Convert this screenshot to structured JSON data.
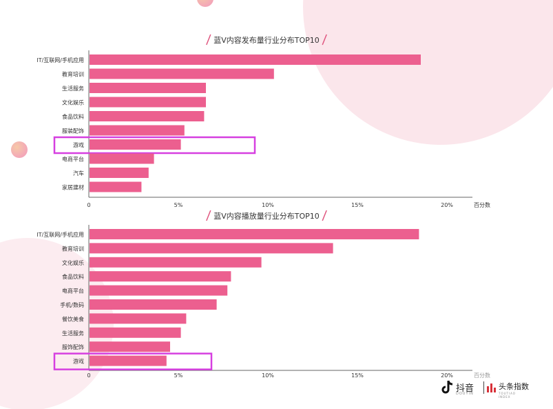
{
  "colors": {
    "bar": "#ec5f8f",
    "highlight": "#d63fe0",
    "axis": "#666666",
    "text": "#333333",
    "title_slash": "#e0567f",
    "bg_blob": "#fbe4ea"
  },
  "chart_data": [
    {
      "type": "bar",
      "orientation": "horizontal",
      "title": "蓝V内容发布量行业分布TOP10",
      "categories": [
        "IT/互联网/手机应用",
        "教育培训",
        "生活服务",
        "文化娱乐",
        "食品饮料",
        "服装配饰",
        "游戏",
        "电商平台",
        "汽车",
        "家居建材"
      ],
      "values": [
        18.5,
        10.3,
        6.5,
        6.5,
        6.4,
        5.3,
        5.1,
        3.6,
        3.3,
        2.9
      ],
      "highlight": "游戏",
      "xlabel": "百分数",
      "xlim": [
        0,
        21.5
      ],
      "xticks": [
        0,
        5,
        10,
        15,
        20
      ],
      "xtick_labels": [
        "0",
        "5%",
        "10%",
        "15%",
        "20%"
      ]
    },
    {
      "type": "bar",
      "orientation": "horizontal",
      "title": "蓝V内容播放量行业分布TOP10",
      "categories": [
        "IT/互联网/手机应用",
        "教育培训",
        "文化娱乐",
        "食品饮料",
        "电商平台",
        "手机/数码",
        "餐饮美食",
        "生活服务",
        "服饰配饰",
        "游戏"
      ],
      "values": [
        18.4,
        13.6,
        9.6,
        7.9,
        7.7,
        7.1,
        5.4,
        5.1,
        4.5,
        4.3
      ],
      "highlight": "游戏",
      "xlabel": "百分数",
      "xlim": [
        0,
        21.5
      ],
      "xticks": [
        0,
        5,
        10,
        15,
        20
      ],
      "xtick_labels": [
        "0",
        "5%",
        "10%",
        "15%",
        "20%"
      ]
    }
  ],
  "logo": {
    "douyin": "抖音",
    "douyin_sub": "DOUYIN",
    "toutiao": "头条指数",
    "toutiao_sub": "TOUTIAO INDEX"
  }
}
